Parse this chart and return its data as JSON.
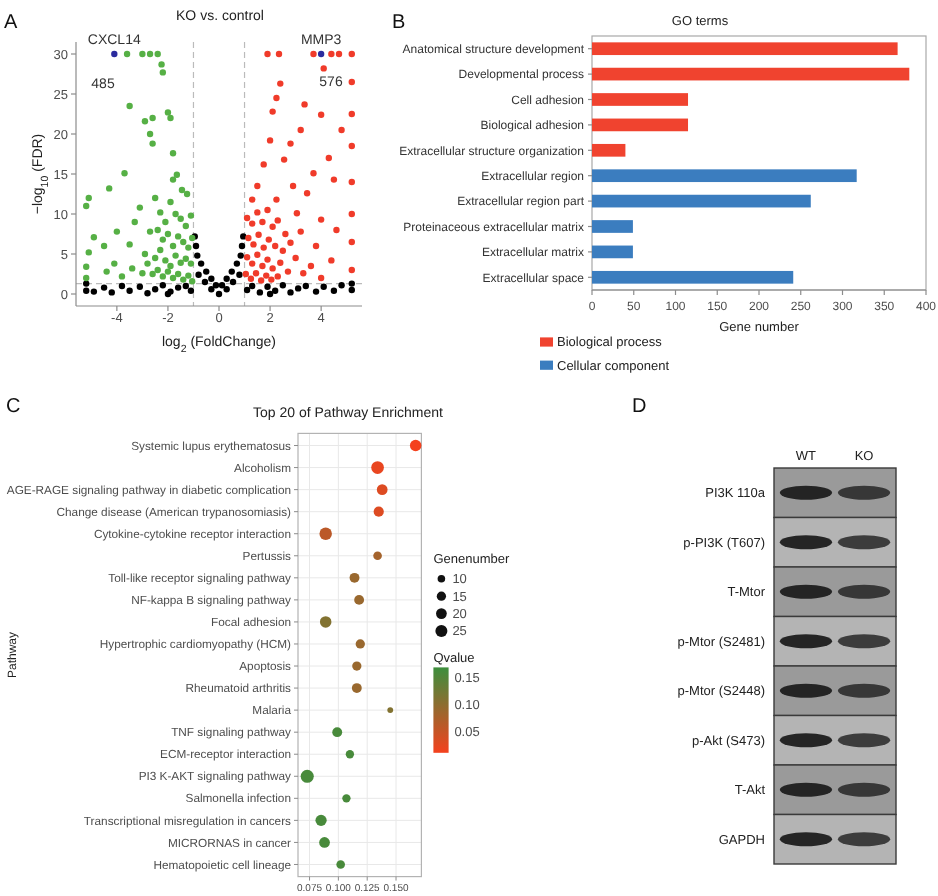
{
  "chart_data": [
    {
      "type": "scatter",
      "title": "KO vs. control",
      "xlabel": "log$_{2}$ (FoldChange)",
      "ylabel": "−log$_{10}$ (FDR)",
      "xlim": [
        -5.6,
        5.6
      ],
      "ylim": [
        -1.5,
        31.5
      ],
      "xticks": [
        -4,
        -2,
        0,
        2,
        4
      ],
      "yticks": [
        0,
        5,
        10,
        15,
        20,
        25,
        30
      ],
      "marker": "circle",
      "ref_lines": [
        {
          "axis": "x",
          "value": -1,
          "color": "#bbbbbb",
          "line_style": "dashed"
        },
        {
          "axis": "x",
          "value": 1,
          "color": "#bbbbbb",
          "line_style": "dashed"
        },
        {
          "axis": "y",
          "value": 1.3,
          "color": "#bbbbbb",
          "line_style": "dashed"
        }
      ],
      "annotations": [
        "A",
        "485",
        "576",
        {
          "text": "CXCL14",
          "x": -4.1,
          "y": 30
        },
        {
          "text": "MMP3",
          "x": 4,
          "y": 30
        }
      ],
      "series": [
        {
          "color": "#000000",
          "x": [
            -0.95,
            -0.9,
            -0.85,
            -0.7,
            -0.5,
            -0.3,
            -0.12,
            0.12,
            0.3,
            0.5,
            0.7,
            0.85,
            0.9,
            0.95,
            -0.8,
            -0.55,
            -0.3,
            0.3,
            0.55,
            0.8,
            0,
            -5.2,
            -5.2,
            -4.9,
            -4.5,
            -4.2,
            -3.8,
            -3.5,
            -3.1,
            -2.8,
            -2.5,
            -2.2,
            -1.9,
            -1.6,
            -1.3,
            -1.1,
            1.1,
            1.3,
            1.6,
            1.9,
            2.2,
            2.5,
            2.8,
            3.1,
            3.4,
            3.8,
            4.1,
            4.5,
            4.8,
            5.2,
            5.2,
            -2,
            2
          ],
          "values": [
            7.2,
            6,
            4.8,
            3.8,
            2.8,
            1.9,
            1.1,
            1.1,
            1.9,
            2.8,
            3.8,
            4.8,
            6,
            7.2,
            2.4,
            1.5,
            0.6,
            0.6,
            1.5,
            2.4,
            0,
            1.3,
            0.4,
            0.3,
            0.8,
            0.2,
            1,
            0.4,
            0.9,
            0.1,
            0.6,
            1.1,
            0.3,
            0.8,
            1,
            0.4,
            0.5,
            1,
            0.2,
            0.9,
            0.4,
            1.1,
            0.2,
            0.7,
            1,
            0.3,
            0.9,
            0.4,
            1.1,
            0.5,
            1.3,
            0,
            0
          ]
        },
        {
          "color": "#56b045",
          "x": [
            -3.6,
            -3,
            -2.7,
            -2.4,
            -2.25,
            -2.2,
            -3.5,
            -2,
            -1.9,
            -2.6,
            -2.9,
            -2.7,
            -2.6,
            -1.8,
            -1.65,
            -1.8,
            -3.7,
            -4.3,
            -5.1,
            -5.2,
            -4.9,
            -4.5,
            -5.1,
            -5.2,
            -5.2,
            -4.1,
            -4,
            -3.5,
            -3.3,
            -3.1,
            -2.9,
            -2.7,
            -2.5,
            -2.3,
            -2.1,
            -1.9,
            -1.7,
            -1.5,
            -1.3,
            -1.1,
            -2.4,
            -2.2,
            -2,
            -1.8,
            -1.6,
            -1.4,
            -1.2,
            -1.05,
            -2.5,
            -2.3,
            -2.1,
            -1.9,
            -1.7,
            -1.5,
            -1.3,
            -1.1,
            -2.6,
            -2.4,
            -2.2,
            -2,
            -1.8,
            -1.6,
            -1.4,
            -1.2,
            -1.05,
            -3,
            -3.4,
            -3.8,
            -4.4,
            -2.8,
            -1.25,
            -1.45
          ],
          "values": [
            30,
            30,
            30,
            30,
            28.7,
            27.7,
            23.5,
            22.7,
            22,
            22,
            21.6,
            20,
            18.8,
            17.6,
            14.9,
            14.3,
            15.1,
            13.2,
            12,
            11,
            7.1,
            6,
            5.2,
            3.4,
            2,
            3.8,
            7.8,
            6.2,
            9,
            10.8,
            5,
            7.8,
            12,
            10.2,
            9,
            11.5,
            10,
            9.4,
            8.5,
            9.8,
            8,
            6.8,
            7.5,
            6,
            7.2,
            6.5,
            5.8,
            7,
            4.5,
            5.5,
            4.2,
            3.5,
            4.8,
            3.9,
            4.4,
            3.8,
            2.5,
            3,
            2.2,
            2.8,
            2,
            2.5,
            1.8,
            2.3,
            1.6,
            2.6,
            3.2,
            2.2,
            2.8,
            3.8,
            12.5,
            13
          ]
        },
        {
          "color": "#f03b2a",
          "x": [
            1.9,
            2.35,
            3.7,
            4.4,
            4.7,
            5.2,
            5.2,
            5.2,
            5.2,
            5.2,
            5.2,
            5.2,
            5.2,
            4.1,
            2.4,
            2.25,
            2.1,
            3.35,
            4,
            2,
            2.8,
            2.55,
            3.7,
            4.5,
            1.75,
            3.45,
            2.25,
            3.05,
            4,
            4.8,
            4.3,
            3.2,
            1.5,
            1.3,
            1.1,
            1.3,
            1.5,
            1.7,
            1.9,
            2.1,
            2.3,
            2.6,
            1.15,
            1.35,
            1.55,
            1.75,
            1.95,
            2.2,
            2.5,
            2.8,
            1.1,
            1.3,
            1.5,
            1.7,
            1.9,
            2.1,
            2.4,
            2.7,
            3,
            1.05,
            1.25,
            1.45,
            1.65,
            1.85,
            2.05,
            2.3,
            3.3,
            3.6,
            4,
            4.4,
            3.8,
            3.2,
            4.6,
            2.9
          ],
          "values": [
            30,
            30,
            30,
            30,
            30,
            30,
            26.5,
            22.5,
            18.5,
            14,
            10,
            6.5,
            3,
            28.2,
            26.3,
            24.5,
            22.8,
            23.7,
            22.4,
            19.2,
            18.8,
            16.8,
            15.1,
            14.3,
            16.2,
            12.6,
            11.8,
            10.1,
            9.3,
            20.5,
            17,
            20.5,
            13.5,
            11.8,
            9.5,
            8.8,
            10.2,
            9,
            10.5,
            8.4,
            9.2,
            7.5,
            7,
            6.2,
            7.4,
            5.8,
            6.8,
            6,
            5.4,
            6.4,
            4.6,
            3.8,
            4.9,
            3.5,
            4.3,
            3.2,
            3.9,
            2.8,
            4.5,
            2.5,
            1.9,
            2.6,
            1.7,
            2.3,
            1.8,
            2.2,
            2.6,
            3.5,
            2,
            4.2,
            6,
            7.8,
            8,
            13.5
          ]
        },
        {
          "color": "#2b2b9e",
          "x": [
            -4.1,
            4
          ],
          "values": [
            30,
            30
          ]
        }
      ]
    },
    {
      "type": "bar",
      "orientation": "horizontal",
      "title": "GO terms",
      "xlabel": "Gene number",
      "categories": [
        "Anatomical structure development",
        "Developmental process",
        "Cell adhesion",
        "Biological adhesion",
        "Extracellular structure organization",
        "Extracellular region",
        "Extracellular region part",
        "Proteinaceous extracellular matrix",
        "Extracellular matrix",
        "Extracellular space"
      ],
      "series": [
        {
          "name": "Biological process",
          "color": "#f0432f",
          "values": [
            366,
            380,
            115,
            115,
            40,
            null,
            null,
            null,
            null,
            null
          ]
        },
        {
          "name": "Cellular component",
          "color": "#3b7dbf",
          "values": [
            null,
            null,
            null,
            null,
            null,
            317,
            262,
            49,
            49,
            241
          ]
        }
      ],
      "xlim": [
        0,
        400
      ],
      "xticks": [
        0,
        50,
        100,
        150,
        200,
        250,
        300,
        350,
        400
      ],
      "legend": "bottom left",
      "annotations": [
        "B"
      ]
    },
    {
      "type": "bubble",
      "orientation": "horizontal",
      "title": "Top 20 of Pathway Enrichment",
      "ylabel": "Pathway",
      "categories": [
        "Systemic lupus erythematosus",
        "Alcoholism",
        "AGE-RAGE signaling pathway in diabetic complication",
        "Change disease (American trypanosomiasis)",
        "Cytokine-cytokine receptor interaction",
        "Pertussis",
        "Toll-like receptor signaling pathway",
        "NF-kappa B signaling pathway",
        "Focal adhesion",
        "Hypertrophic cardiomyopathy (HCM)",
        "Apoptosis",
        "Rheumatoid arthritis",
        "Malaria",
        "TNF signaling pathway",
        "ECM-receptor interaction",
        "PI3 K-AKT signaling pathway",
        "Salmonella infection",
        "Transcriptional misregulation in cancers",
        "MICRORNAS in cancer",
        "Hematopoietic cell lineage"
      ],
      "values": [
        0.167,
        0.134,
        0.138,
        0.135,
        0.089,
        0.134,
        0.114,
        0.118,
        0.089,
        0.119,
        0.116,
        0.116,
        0.145,
        0.099,
        0.11,
        0.073,
        0.107,
        0.085,
        0.088,
        0.102
      ],
      "sizes": [
        23,
        28,
        20,
        18,
        27,
        13,
        17,
        17,
        23,
        15,
        15,
        17,
        6,
        17,
        12,
        30,
        12,
        22,
        20,
        13
      ],
      "cvalues": [
        0.01,
        0.02,
        0.03,
        0.03,
        0.06,
        0.08,
        0.09,
        0.09,
        0.11,
        0.09,
        0.09,
        0.09,
        0.11,
        0.16,
        0.16,
        0.16,
        0.16,
        0.16,
        0.16,
        0.16
      ],
      "size_legend": [
        10,
        15,
        20,
        25
      ],
      "legend_title": "Genenumber",
      "clabel": "Qvalue",
      "clim": [
        0.01,
        0.17
      ],
      "cticks": [
        0.05,
        {
          "value": 0.1,
          "label": "0.10"
        },
        0.15
      ],
      "xlim": [
        0.065,
        0.172
      ],
      "xticks": [
        0.075,
        {
          "value": 0.1,
          "label": "0.100"
        },
        0.125,
        {
          "value": 0.15,
          "label": "0.150"
        }
      ],
      "grid": true,
      "annotations": [
        "C"
      ]
    },
    {
      "type": "other",
      "categories": [
        "WT",
        "KO"
      ],
      "y_categories": [
        "PI3K 110a",
        "p-PI3K (T607)",
        "T-Mtor",
        "p-Mtor (S2481)",
        "p-Mtor (S2448)",
        "p-Akt (S473)",
        "T-Akt",
        "GAPDH"
      ],
      "annotations": [
        "D"
      ]
    }
  ]
}
